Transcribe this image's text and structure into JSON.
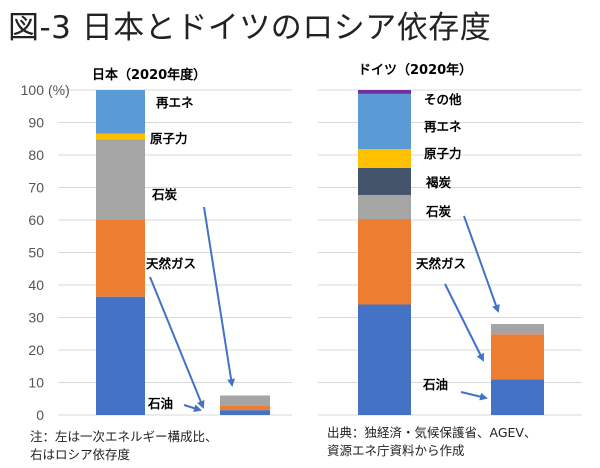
{
  "title": "図-3 日本とドイツのロシア依存度",
  "colors": {
    "oil": "#4472c4",
    "gas": "#ed7d31",
    "coal": "#a5a5a5",
    "lignite": "#44546a",
    "nuclear": "#ffc000",
    "renewables": "#5b9bd5",
    "other": "#7030a0",
    "arrow": "#4472c4",
    "grid": "#d9d9d9"
  },
  "chart_data": [
    {
      "type": "bar",
      "stacked": true,
      "title": "日本（2020年度）",
      "ylabel": "(%)",
      "ylim": [
        0,
        100
      ],
      "yticks": [
        0,
        10,
        20,
        30,
        40,
        50,
        60,
        70,
        80,
        90,
        100
      ],
      "grid": true,
      "categories": [
        "一次エネルギー構成比",
        "ロシア依存度"
      ],
      "series": [
        {
          "key": "oil",
          "name": "石油",
          "values": [
            36.4,
            1.5
          ]
        },
        {
          "key": "gas",
          "name": "天然ガス",
          "values": [
            23.8,
            1.5
          ]
        },
        {
          "key": "coal",
          "name": "石炭",
          "values": [
            24.6,
            3.0
          ]
        },
        {
          "key": "nuclear",
          "name": "原子力",
          "values": [
            1.8,
            0
          ]
        },
        {
          "key": "renewables",
          "name": "再エネ",
          "values": [
            13.4,
            0
          ]
        }
      ],
      "annotations": [
        "再エネ",
        "原子力",
        "石炭",
        "天然ガス",
        "石油"
      ]
    },
    {
      "type": "bar",
      "stacked": true,
      "title": "ドイツ（2020年）",
      "ylim": [
        0,
        100
      ],
      "grid": true,
      "categories": [
        "一次エネルギー構成比",
        "ロシア依存度"
      ],
      "series": [
        {
          "key": "oil",
          "name": "石油",
          "values": [
            34.0,
            11.0
          ]
        },
        {
          "key": "gas",
          "name": "天然ガス",
          "values": [
            26.3,
            13.8
          ]
        },
        {
          "key": "coal",
          "name": "石炭",
          "values": [
            7.4,
            3.2
          ]
        },
        {
          "key": "lignite",
          "name": "褐炭",
          "values": [
            8.3,
            0
          ]
        },
        {
          "key": "nuclear",
          "name": "原子力",
          "values": [
            5.8,
            0
          ]
        },
        {
          "key": "renewables",
          "name": "再エネ",
          "values": [
            17.0,
            0
          ]
        },
        {
          "key": "other",
          "name": "その他",
          "values": [
            1.2,
            0
          ]
        }
      ],
      "annotations": [
        "その他",
        "再エネ",
        "原子力",
        "褐炭",
        "石炭",
        "天然ガス",
        "石油"
      ]
    }
  ],
  "notes": {
    "left_line1": "注：左は一次エネルギー構成比、",
    "left_line2": "右はロシア依存度",
    "right_line1": "出典：独経済・気候保護省、AGEV、",
    "right_line2": "資源エネ庁資料から作成"
  }
}
